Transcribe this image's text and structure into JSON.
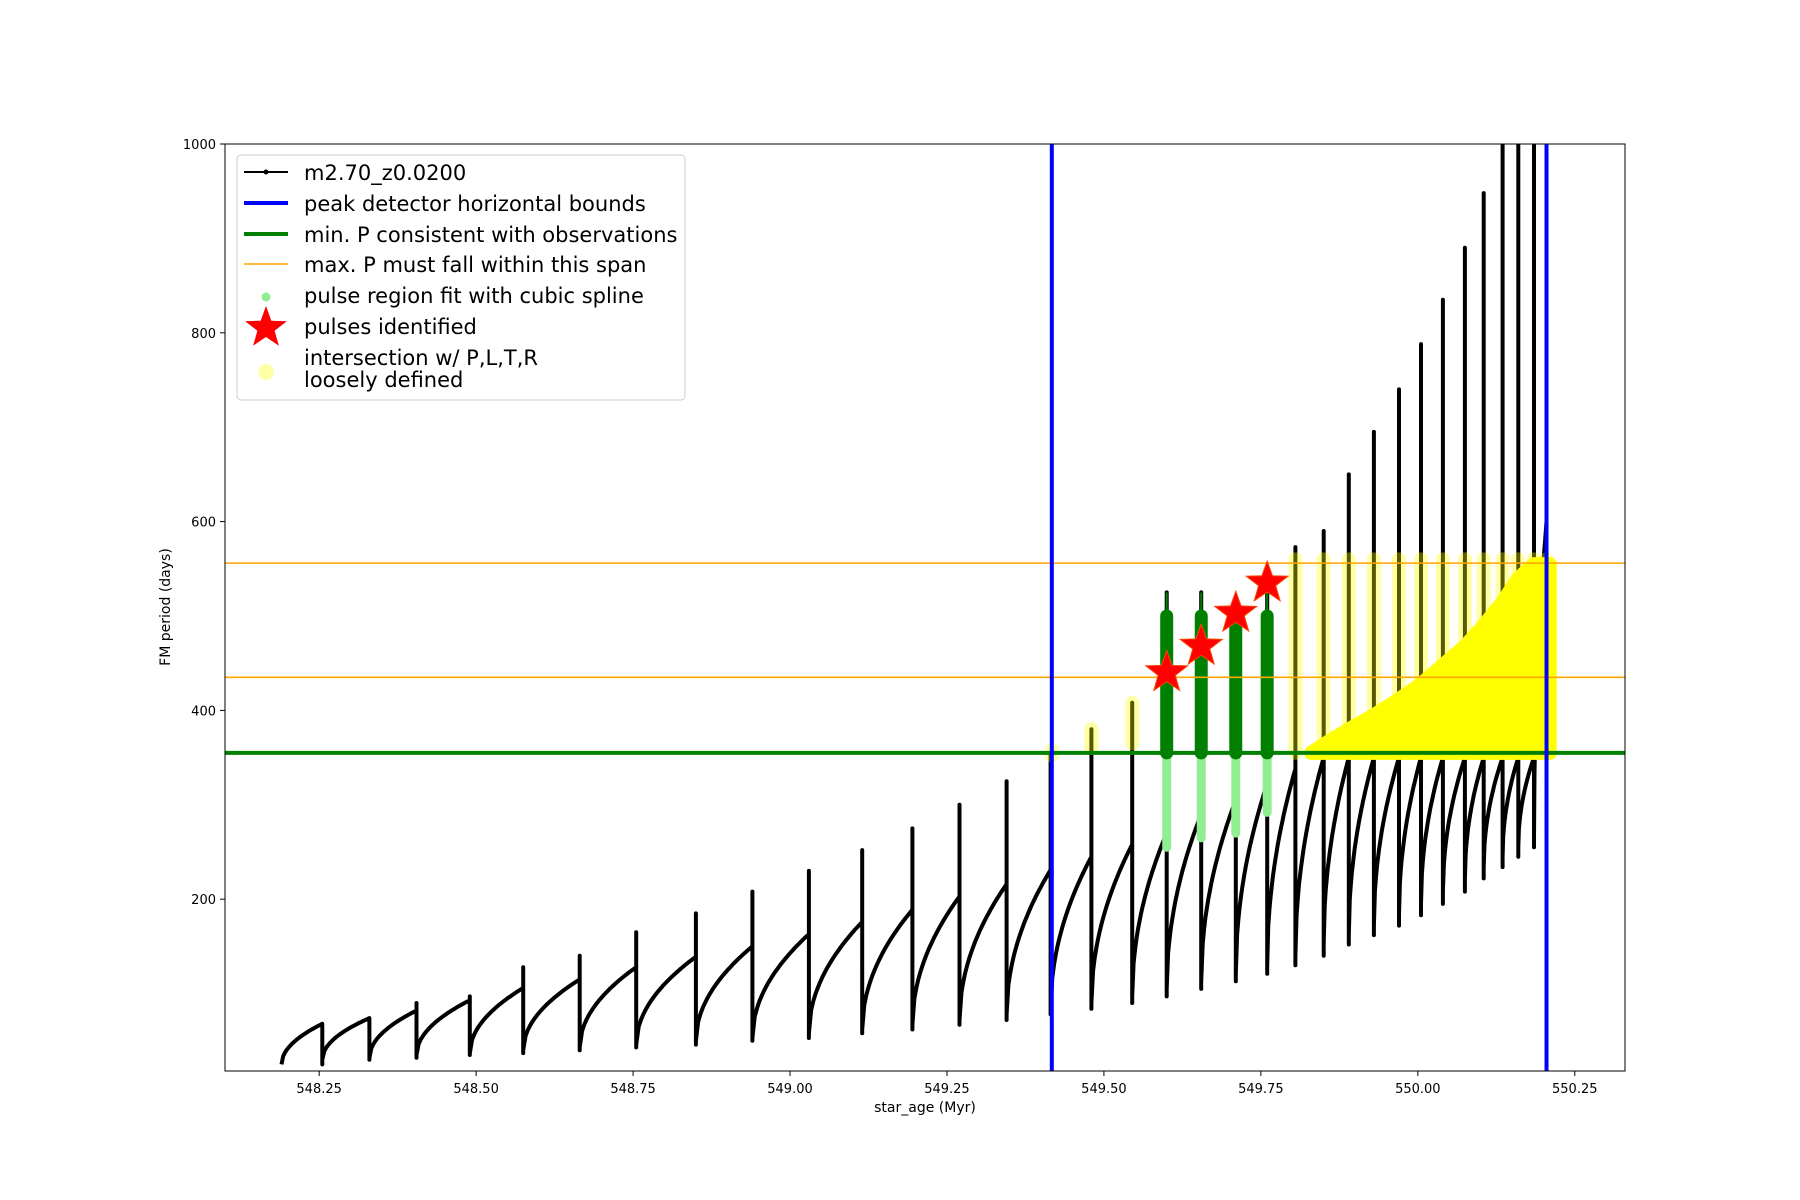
{
  "chart_data": {
    "type": "line",
    "title": "",
    "xlabel": "star_age (Myr)",
    "ylabel": "FM period (days)",
    "xlim": [
      548.1,
      550.33
    ],
    "ylim": [
      18,
      1000
    ],
    "grid": false,
    "legend_placement": "top-left",
    "x_ticks": [
      "548.25",
      "548.50",
      "548.75",
      "549.00",
      "549.25",
      "549.50",
      "549.75",
      "550.00",
      "550.25"
    ],
    "x_tick_values": [
      548.25,
      548.5,
      548.75,
      549.0,
      549.25,
      549.5,
      549.75,
      550.0,
      550.25
    ],
    "y_ticks": [
      "200",
      "400",
      "600",
      "800",
      "1000"
    ],
    "y_tick_values": [
      200,
      400,
      600,
      800,
      1000
    ],
    "colors": {
      "track": "#000000",
      "bounds": "#0000ff",
      "min_p": "#008000",
      "max_p_span": "#ffa500",
      "spline_fit": "#90ee90",
      "pulse_star": "#ff0000",
      "intersection": "#ffff00"
    },
    "legend": [
      {
        "label": "m2.70_z0.0200",
        "kind": "line-marker",
        "color": "#000000"
      },
      {
        "label": "peak detector horizontal bounds",
        "kind": "line-thick",
        "color": "#0000ff"
      },
      {
        "label": "min. P consistent with observations",
        "kind": "line-thick",
        "color": "#008000"
      },
      {
        "label": "max. P must fall within this span",
        "kind": "line-thin",
        "color": "#ffa500"
      },
      {
        "label": "pulse region fit with cubic spline",
        "kind": "dot",
        "color": "#90ee90"
      },
      {
        "label": "pulses identified",
        "kind": "star",
        "color": "#ff0000"
      },
      {
        "label": "intersection w/ P,L,T,R",
        "label2": "loosely defined",
        "kind": "circle",
        "color": "#ffff00"
      }
    ],
    "peak_bounds_x": [
      549.417,
      550.205
    ],
    "min_p": 355,
    "max_p_span": [
      435,
      556
    ],
    "track_cycles": [
      {
        "start": 548.19,
        "pulse": 548.255,
        "p_min": 25,
        "p_end": 68,
        "spike": 68,
        "spike_lo": 25
      },
      {
        "start": 548.255,
        "pulse": 548.33,
        "p_min": 30,
        "p_end": 74,
        "spike": 74,
        "spike_lo": 30
      },
      {
        "start": 548.33,
        "pulse": 548.405,
        "p_min": 32,
        "p_end": 82,
        "spike": 90,
        "spike_lo": 32
      },
      {
        "start": 548.405,
        "pulse": 548.49,
        "p_min": 35,
        "p_end": 93,
        "spike": 97,
        "spike_lo": 35
      },
      {
        "start": 548.49,
        "pulse": 548.575,
        "p_min": 37,
        "p_end": 106,
        "spike": 128,
        "spike_lo": 37
      },
      {
        "start": 548.575,
        "pulse": 548.665,
        "p_min": 40,
        "p_end": 115,
        "spike": 140,
        "spike_lo": 40
      },
      {
        "start": 548.665,
        "pulse": 548.755,
        "p_min": 43,
        "p_end": 128,
        "spike": 165,
        "spike_lo": 43
      },
      {
        "start": 548.755,
        "pulse": 548.85,
        "p_min": 46,
        "p_end": 139,
        "spike": 185,
        "spike_lo": 46
      },
      {
        "start": 548.85,
        "pulse": 548.94,
        "p_min": 50,
        "p_end": 150,
        "spike": 208,
        "spike_lo": 50
      },
      {
        "start": 548.94,
        "pulse": 549.03,
        "p_min": 53,
        "p_end": 163,
        "spike": 230,
        "spike_lo": 53
      },
      {
        "start": 549.03,
        "pulse": 549.115,
        "p_min": 58,
        "p_end": 176,
        "spike": 252,
        "spike_lo": 58
      },
      {
        "start": 549.115,
        "pulse": 549.195,
        "p_min": 62,
        "p_end": 189,
        "spike": 275,
        "spike_lo": 62
      },
      {
        "start": 549.195,
        "pulse": 549.27,
        "p_min": 67,
        "p_end": 203,
        "spike": 300,
        "spike_lo": 67
      },
      {
        "start": 549.27,
        "pulse": 549.345,
        "p_min": 72,
        "p_end": 216,
        "spike": 325,
        "spike_lo": 72
      },
      {
        "start": 549.345,
        "pulse": 549.415,
        "p_min": 78,
        "p_end": 231,
        "spike": 355,
        "spike_lo": 78
      },
      {
        "start": 549.415,
        "pulse": 549.48,
        "p_min": 84,
        "p_end": 245,
        "spike": 380,
        "spike_lo": 84
      },
      {
        "start": 549.48,
        "pulse": 549.545,
        "p_min": 90,
        "p_end": 258,
        "spike": 408,
        "spike_lo": 90
      },
      {
        "start": 549.545,
        "pulse": 549.6,
        "p_min": 97,
        "p_end": 270,
        "spike": 525,
        "spike_lo": 97
      },
      {
        "start": 549.6,
        "pulse": 549.655,
        "p_min": 105,
        "p_end": 290,
        "spike": 525,
        "spike_lo": 105
      },
      {
        "start": 549.655,
        "pulse": 549.71,
        "p_min": 113,
        "p_end": 305,
        "spike": 495,
        "spike_lo": 113
      },
      {
        "start": 549.71,
        "pulse": 549.76,
        "p_min": 121,
        "p_end": 322,
        "spike": 530,
        "spike_lo": 121
      },
      {
        "start": 549.76,
        "pulse": 549.805,
        "p_min": 130,
        "p_end": 338,
        "spike": 573,
        "spike_lo": 130
      },
      {
        "start": 549.805,
        "pulse": 549.85,
        "p_min": 140,
        "p_end": 350,
        "spike": 590,
        "spike_lo": 140
      },
      {
        "start": 549.85,
        "pulse": 549.89,
        "p_min": 152,
        "p_end": 350,
        "spike": 650,
        "spike_lo": 152
      },
      {
        "start": 549.89,
        "pulse": 549.93,
        "p_min": 162,
        "p_end": 350,
        "spike": 695,
        "spike_lo": 162
      },
      {
        "start": 549.93,
        "pulse": 549.97,
        "p_min": 172,
        "p_end": 350,
        "spike": 740,
        "spike_lo": 172
      },
      {
        "start": 549.97,
        "pulse": 550.005,
        "p_min": 183,
        "p_end": 350,
        "spike": 788,
        "spike_lo": 183
      },
      {
        "start": 550.005,
        "pulse": 550.04,
        "p_min": 195,
        "p_end": 350,
        "spike": 835,
        "spike_lo": 195
      },
      {
        "start": 550.04,
        "pulse": 550.075,
        "p_min": 208,
        "p_end": 350,
        "spike": 890,
        "spike_lo": 208
      },
      {
        "start": 550.075,
        "pulse": 550.105,
        "p_min": 222,
        "p_end": 350,
        "spike": 948,
        "spike_lo": 222
      },
      {
        "start": 550.105,
        "pulse": 550.135,
        "p_min": 234,
        "p_end": 350,
        "spike": 1000,
        "spike_lo": 234
      },
      {
        "start": 550.135,
        "pulse": 550.16,
        "p_min": 245,
        "p_end": 350,
        "spike": 1000,
        "spike_lo": 245
      },
      {
        "start": 550.16,
        "pulse": 550.185,
        "p_min": 255,
        "p_end": 350,
        "spike": 1000,
        "spike_lo": 255
      },
      {
        "start": 550.185,
        "pulse": 550.205,
        "p_min": 265,
        "p_end": 600,
        "spike": 1000,
        "spike_lo": 265
      }
    ],
    "spline_regions": [
      {
        "x": 549.6,
        "lo": 255,
        "hi": 355
      },
      {
        "x": 549.655,
        "lo": 265,
        "hi": 355
      },
      {
        "x": 549.71,
        "lo": 270,
        "hi": 355
      },
      {
        "x": 549.76,
        "lo": 292,
        "hi": 355
      }
    ],
    "green_pulse_segments": [
      {
        "x": 549.6,
        "lo": 355,
        "hi": 500,
        "whisker": 525
      },
      {
        "x": 549.655,
        "lo": 355,
        "hi": 500,
        "whisker": 525
      },
      {
        "x": 549.71,
        "lo": 355,
        "hi": 500,
        "whisker": 525
      },
      {
        "x": 549.76,
        "lo": 355,
        "hi": 500,
        "whisker": 525
      }
    ],
    "pulses_identified": [
      {
        "x": 549.6,
        "y": 440
      },
      {
        "x": 549.655,
        "y": 468
      },
      {
        "x": 549.71,
        "y": 503
      },
      {
        "x": 549.76,
        "y": 535
      }
    ],
    "intersection_columns": [
      {
        "x": 549.417,
        "lo": 352,
        "hi": 358
      },
      {
        "x": 549.48,
        "lo": 360,
        "hi": 380
      },
      {
        "x": 549.545,
        "lo": 365,
        "hi": 408
      },
      {
        "x": 549.805,
        "lo": 355,
        "hi": 560
      },
      {
        "x": 549.85,
        "lo": 355,
        "hi": 560
      },
      {
        "x": 549.89,
        "lo": 355,
        "hi": 560
      },
      {
        "x": 549.93,
        "lo": 355,
        "hi": 560
      },
      {
        "x": 549.97,
        "lo": 355,
        "hi": 560
      },
      {
        "x": 550.005,
        "lo": 355,
        "hi": 560
      },
      {
        "x": 550.04,
        "lo": 355,
        "hi": 560
      },
      {
        "x": 550.075,
        "lo": 355,
        "hi": 560
      },
      {
        "x": 550.105,
        "lo": 355,
        "hi": 560
      },
      {
        "x": 550.135,
        "lo": 355,
        "hi": 560
      },
      {
        "x": 550.16,
        "lo": 355,
        "hi": 560
      },
      {
        "x": 550.185,
        "lo": 355,
        "hi": 560
      },
      {
        "x": 550.205,
        "lo": 355,
        "hi": 560
      }
    ],
    "intersection_envelope": [
      {
        "x": 549.83,
        "y": 355
      },
      {
        "x": 549.86,
        "y": 368
      },
      {
        "x": 549.89,
        "y": 380
      },
      {
        "x": 549.93,
        "y": 395
      },
      {
        "x": 549.97,
        "y": 412
      },
      {
        "x": 550.005,
        "y": 428
      },
      {
        "x": 550.04,
        "y": 448
      },
      {
        "x": 550.075,
        "y": 468
      },
      {
        "x": 550.105,
        "y": 490
      },
      {
        "x": 550.135,
        "y": 515
      },
      {
        "x": 550.16,
        "y": 540
      },
      {
        "x": 550.185,
        "y": 555
      },
      {
        "x": 550.21,
        "y": 555
      }
    ]
  }
}
